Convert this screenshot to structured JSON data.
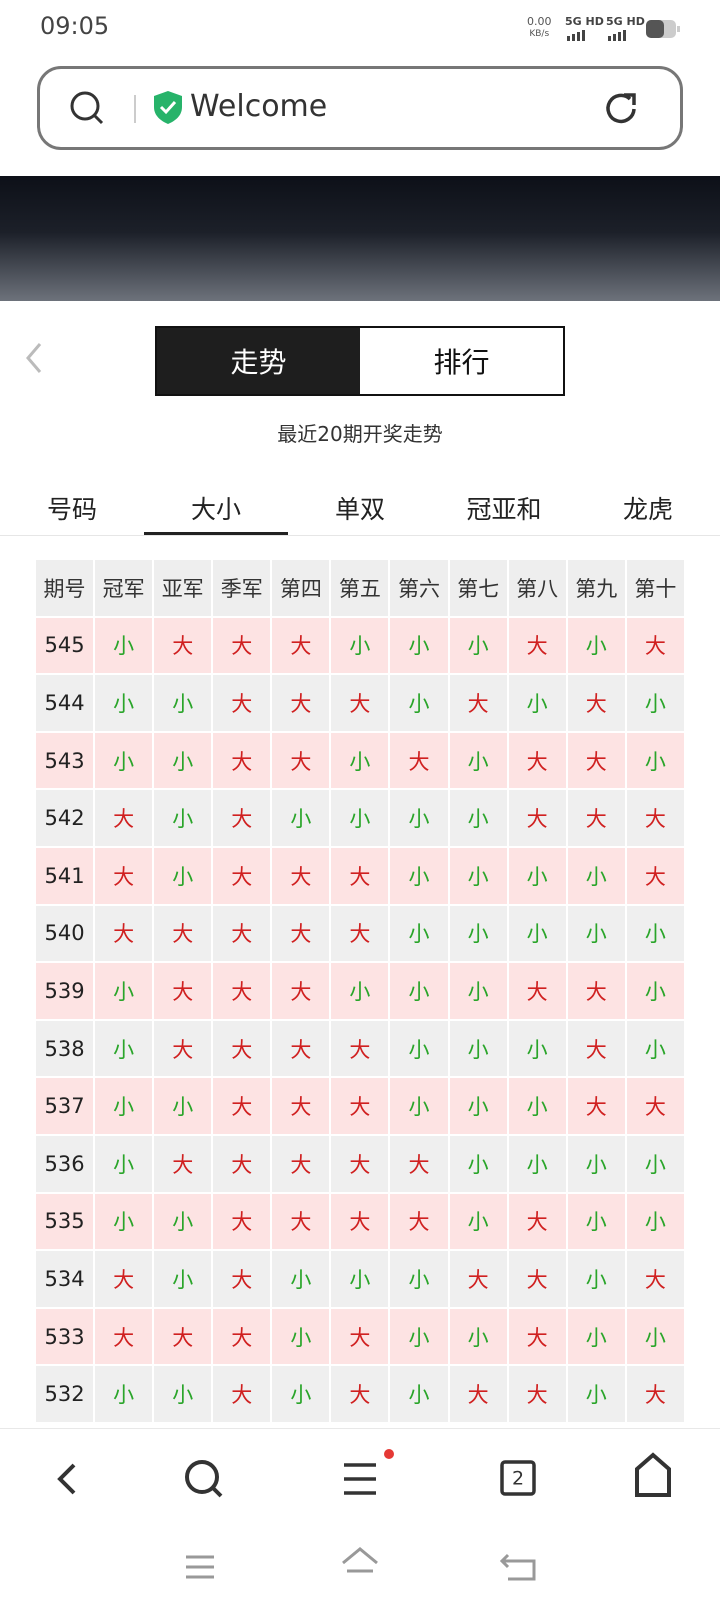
{
  "status_bar": {
    "time": "09:05",
    "speed_value": "0.00",
    "speed_unit": "KB/s",
    "network_1": "5G HD",
    "network_2": "5G HD"
  },
  "search_bar": {
    "text": "Welcome"
  },
  "toggle": {
    "tabs": [
      "走势",
      "排行"
    ],
    "active": 0
  },
  "subtitle": "最近20期开奖走势",
  "category_tabs": {
    "tabs": [
      "号码",
      "大小",
      "单双",
      "冠亚和",
      "龙虎"
    ],
    "active": 1
  },
  "table": {
    "header": [
      "期号",
      "冠军",
      "亚军",
      "季军",
      "第四",
      "第五",
      "第六",
      "第七",
      "第八",
      "第九",
      "第十"
    ],
    "rows": [
      [
        "545",
        "小",
        "大",
        "大",
        "大",
        "小",
        "小",
        "小",
        "大",
        "小",
        "大"
      ],
      [
        "544",
        "小",
        "小",
        "大",
        "大",
        "大",
        "小",
        "大",
        "小",
        "大",
        "小"
      ],
      [
        "543",
        "小",
        "小",
        "大",
        "大",
        "小",
        "大",
        "小",
        "大",
        "大",
        "小"
      ],
      [
        "542",
        "大",
        "小",
        "大",
        "小",
        "小",
        "小",
        "小",
        "大",
        "大",
        "大"
      ],
      [
        "541",
        "大",
        "小",
        "大",
        "大",
        "大",
        "小",
        "小",
        "小",
        "小",
        "大"
      ],
      [
        "540",
        "大",
        "大",
        "大",
        "大",
        "大",
        "小",
        "小",
        "小",
        "小",
        "小"
      ],
      [
        "539",
        "小",
        "大",
        "大",
        "大",
        "小",
        "小",
        "小",
        "大",
        "大",
        "小"
      ],
      [
        "538",
        "小",
        "大",
        "大",
        "大",
        "大",
        "小",
        "小",
        "小",
        "大",
        "小"
      ],
      [
        "537",
        "小",
        "小",
        "大",
        "大",
        "大",
        "小",
        "小",
        "小",
        "大",
        "大"
      ],
      [
        "536",
        "小",
        "大",
        "大",
        "大",
        "大",
        "大",
        "小",
        "小",
        "小",
        "小"
      ],
      [
        "535",
        "小",
        "小",
        "大",
        "大",
        "大",
        "大",
        "小",
        "大",
        "小",
        "小"
      ],
      [
        "534",
        "大",
        "小",
        "大",
        "小",
        "小",
        "小",
        "大",
        "大",
        "小",
        "大"
      ],
      [
        "533",
        "大",
        "大",
        "大",
        "小",
        "大",
        "小",
        "小",
        "大",
        "小",
        "小"
      ],
      [
        "532",
        "小",
        "小",
        "大",
        "小",
        "大",
        "小",
        "大",
        "大",
        "小",
        "大"
      ]
    ]
  },
  "bottom_nav": {
    "tab_count": "2"
  }
}
